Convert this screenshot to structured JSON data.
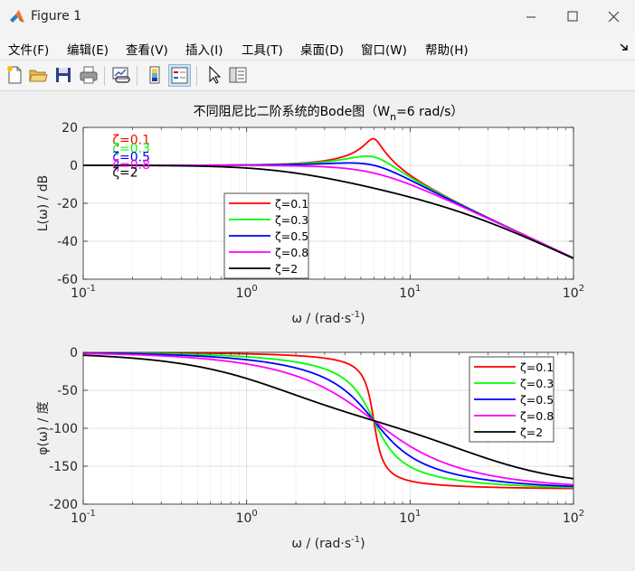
{
  "window": {
    "title": "Figure 1"
  },
  "menu": {
    "items": [
      "文件(F)",
      "编辑(E)",
      "查看(V)",
      "插入(I)",
      "工具(T)",
      "桌面(D)",
      "窗口(W)",
      "帮助(H)"
    ]
  },
  "toolbar": {
    "icons": [
      "new-figure",
      "open-file",
      "save",
      "print",
      "link-plot",
      "insert-colorbar",
      "insert-legend",
      "select-arrow",
      "property-inspector"
    ]
  },
  "colors": {
    "zeta_0_1": "#ff0000",
    "zeta_0_3": "#00ff00",
    "zeta_0_5": "#0000ff",
    "zeta_0_8": "#ff00ff",
    "zeta_2": "#000000"
  },
  "chart_data": [
    {
      "type": "line",
      "title_prefix": "不同阻尼比二阶系统的Bode图（W",
      "title_sub": "n",
      "title_suffix": "=6 rad/s）",
      "xlabel_main": "ω / (rad·s",
      "xlabel_sup": "-1",
      "xlabel_end": ")",
      "ylabel": "L(ω) / dB",
      "x_scale": "log",
      "xlim": [
        0.1,
        100
      ],
      "ylim": [
        -60,
        20
      ],
      "yticks": [
        -60,
        -40,
        -20,
        0,
        20
      ],
      "xtick_labels": [
        {
          "base": "10",
          "exp": "-1"
        },
        {
          "base": "10",
          "exp": "0"
        },
        {
          "base": "10",
          "exp": "1"
        },
        {
          "base": "10",
          "exp": "2"
        }
      ],
      "grid": true,
      "legend_position": "bottom-center",
      "wn": 6,
      "series": [
        {
          "name": "ζ=0.1",
          "zeta": 0.1,
          "color": "#ff0000",
          "points": [
            [
              0.1,
              0.0
            ],
            [
              1,
              0.2
            ],
            [
              3,
              2.3
            ],
            [
              5,
              9.5
            ],
            [
              6,
              14.0
            ],
            [
              7,
              7.5
            ],
            [
              10,
              -6.6
            ],
            [
              20,
              -20.6
            ],
            [
              50,
              -36.8
            ],
            [
              100,
              -48.9
            ]
          ]
        },
        {
          "name": "ζ=0.3",
          "zeta": 0.3,
          "color": "#00ff00",
          "points": [
            [
              0.1,
              0.0
            ],
            [
              1,
              0.2
            ],
            [
              3,
              1.7
            ],
            [
              5,
              4.3
            ],
            [
              6,
              4.4
            ],
            [
              7,
              2.6
            ],
            [
              10,
              -6.1
            ],
            [
              20,
              -20.5
            ],
            [
              50,
              -36.8
            ],
            [
              100,
              -48.9
            ]
          ]
        },
        {
          "name": "ζ=0.5",
          "zeta": 0.5,
          "color": "#0000ff",
          "points": [
            [
              0.1,
              0.0
            ],
            [
              1,
              0.1
            ],
            [
              3,
              0.8
            ],
            [
              5,
              1.1
            ],
            [
              6,
              0.0
            ],
            [
              7,
              -1.5
            ],
            [
              10,
              -7.0
            ],
            [
              20,
              -20.9
            ],
            [
              50,
              -36.9
            ],
            [
              100,
              -48.9
            ]
          ]
        },
        {
          "name": "ζ=0.8",
          "zeta": 0.8,
          "color": "#ff00ff",
          "points": [
            [
              0.1,
              0.0
            ],
            [
              1,
              -0.1
            ],
            [
              3,
              -1.0
            ],
            [
              5,
              -2.9
            ],
            [
              6,
              -4.1
            ],
            [
              7,
              -5.4
            ],
            [
              10,
              -9.3
            ],
            [
              20,
              -21.7
            ],
            [
              50,
              -37.0
            ],
            [
              100,
              -48.9
            ]
          ]
        },
        {
          "name": "ζ=2",
          "zeta": 2,
          "color": "#000000",
          "points": [
            [
              0.1,
              0.0
            ],
            [
              1,
              -1.8
            ],
            [
              3,
              -6.6
            ],
            [
              5,
              -10.3
            ],
            [
              6,
              -12.0
            ],
            [
              7,
              -13.5
            ],
            [
              10,
              -17.2
            ],
            [
              20,
              -25.2
            ],
            [
              50,
              -37.8
            ],
            [
              100,
              -49.0
            ]
          ]
        }
      ],
      "annotations": [
        {
          "text": "ζ=0.1",
          "color": "#ff0000",
          "x": 0.2,
          "y": 13.5
        },
        {
          "text": "ζ=0.3",
          "color": "#00ff00",
          "x": 0.2,
          "y": 9.0
        },
        {
          "text": "ζ=0.5",
          "color": "#0000ff",
          "x": 0.2,
          "y": 4.5
        },
        {
          "text": "ζ=0.8",
          "color": "#ff00ff",
          "x": 0.2,
          "y": 0.5
        },
        {
          "text": "ζ=2",
          "color": "#000000",
          "x": 0.2,
          "y": -3.5
        }
      ]
    },
    {
      "type": "line",
      "xlabel_main": "ω / (rad·s",
      "xlabel_sup": "-1",
      "xlabel_end": ")",
      "ylabel": "φ(ω) / 度",
      "x_scale": "log",
      "xlim": [
        0.1,
        100
      ],
      "ylim": [
        -200,
        0
      ],
      "yticks": [
        -200,
        -150,
        -100,
        -50,
        0
      ],
      "xtick_labels": [
        {
          "base": "10",
          "exp": "-1"
        },
        {
          "base": "10",
          "exp": "0"
        },
        {
          "base": "10",
          "exp": "1"
        },
        {
          "base": "10",
          "exp": "2"
        }
      ],
      "grid": true,
      "legend_position": "top-right",
      "wn": 6,
      "series": [
        {
          "name": "ζ=0.1",
          "zeta": 0.1,
          "color": "#ff0000",
          "points": [
            [
              0.1,
              -0.2
            ],
            [
              1,
              -2.0
            ],
            [
              3,
              -8.5
            ],
            [
              5,
              -27.5
            ],
            [
              6,
              -90
            ],
            [
              7,
              -159
            ],
            [
              10,
              -172.8
            ],
            [
              20,
              -177.5
            ],
            [
              100,
              -179.7
            ]
          ]
        },
        {
          "name": "ζ=0.3",
          "zeta": 0.3,
          "color": "#00ff00",
          "points": [
            [
              0.1,
              -0.6
            ],
            [
              1,
              -6.1
            ],
            [
              3,
              -25.6
            ],
            [
              5,
              -58.6
            ],
            [
              6,
              -90
            ],
            [
              7,
              -117.7
            ],
            [
              10,
              -155.4
            ],
            [
              20,
              -172.5
            ],
            [
              100,
              -178.9
            ]
          ]
        },
        {
          "name": "ζ=0.5",
          "zeta": 0.5,
          "color": "#0000ff",
          "points": [
            [
              0.1,
              -1.0
            ],
            [
              1,
              -10.1
            ],
            [
              3,
              -33.7
            ],
            [
              5,
              -69.8
            ],
            [
              6,
              -90
            ],
            [
              7,
              -107.9
            ],
            [
              10,
              -146.1
            ],
            [
              20,
              -167.5
            ],
            [
              100,
              -178.2
            ]
          ]
        },
        {
          "name": "ζ=0.8",
          "zeta": 0.8,
          "color": "#ff00ff",
          "points": [
            [
              0.1,
              -1.5
            ],
            [
              1,
              -16.0
            ],
            [
              3,
              -45.5
            ],
            [
              5,
              -77.0
            ],
            [
              6,
              -90
            ],
            [
              7,
              -102.9
            ],
            [
              10,
              -132.3
            ],
            [
              20,
              -158.3
            ],
            [
              100,
              -177.2
            ]
          ]
        },
        {
          "name": "ζ=2",
          "zeta": 2,
          "color": "#000000",
          "points": [
            [
              0.1,
              -3.8
            ],
            [
              1,
              -37.4
            ],
            [
              3,
              -69.4
            ],
            [
              5,
              -84.8
            ],
            [
              6,
              -90
            ],
            [
              7,
              -94.6
            ],
            [
              10,
              -113.2
            ],
            [
              20,
              -142.4
            ],
            [
              100,
              -166.8
            ]
          ]
        }
      ]
    }
  ]
}
